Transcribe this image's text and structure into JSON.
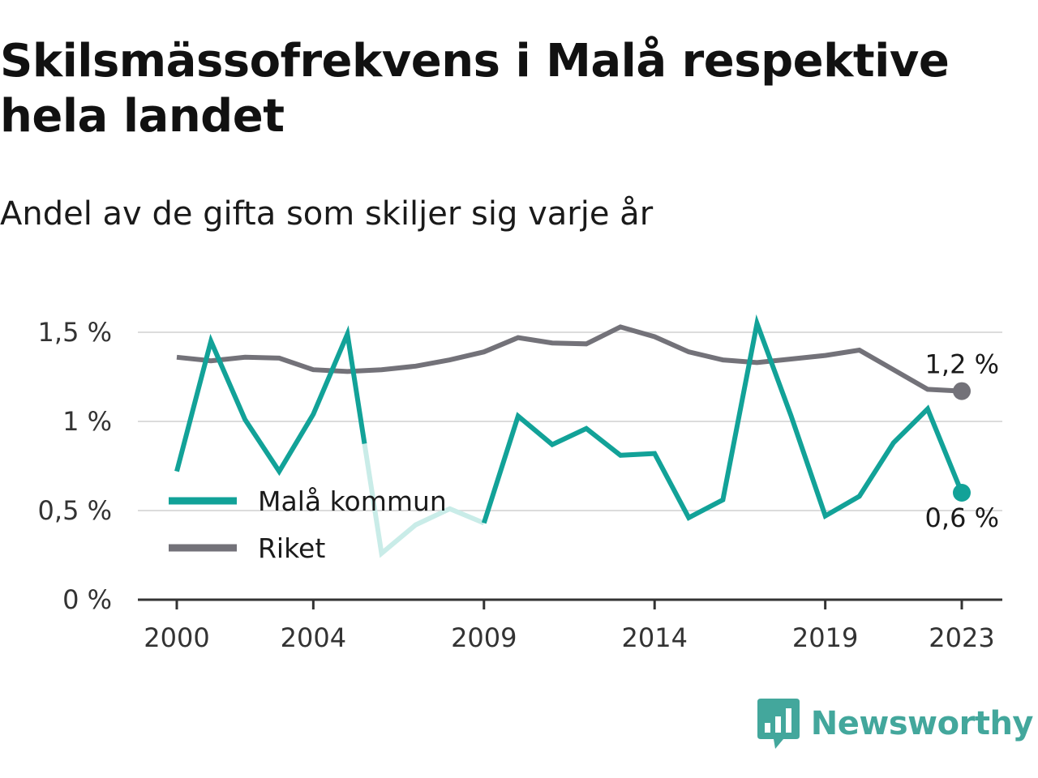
{
  "title": "Skilsmässofrekvens i Malå respektive hela landet",
  "subtitle": "Andel av de gifta som skiljer sig varje år",
  "brand": {
    "name": "Newsworthy",
    "logo_icon": "bar-chart-speech-bubble-icon",
    "color": "#43a79c"
  },
  "chart_data": {
    "type": "line",
    "title": "Skilsmässofrekvens i Malå respektive hela landet",
    "subtitle": "Andel av de gifta som skiljer sig varje år",
    "xlabel": "",
    "ylabel": "",
    "x": [
      2000,
      2001,
      2002,
      2003,
      2004,
      2005,
      2006,
      2007,
      2008,
      2009,
      2010,
      2011,
      2012,
      2013,
      2014,
      2015,
      2016,
      2017,
      2018,
      2019,
      2020,
      2021,
      2022,
      2023
    ],
    "x_ticks": [
      2000,
      2004,
      2009,
      2014,
      2019,
      2023
    ],
    "x_tick_labels": [
      "2000",
      "2004",
      "2009",
      "2014",
      "2019",
      "2023"
    ],
    "ylim": [
      0,
      1.6
    ],
    "y_ticks": [
      0,
      0.5,
      1,
      1.5
    ],
    "y_tick_labels": [
      "0 %",
      "0,5 %",
      "1 %",
      "1,5 %"
    ],
    "grid": true,
    "legend_position": "bottom-left",
    "series": [
      {
        "name": "Malå kommun",
        "color": "#12a298",
        "faded_color": "#c9ece8",
        "faded_range": [
          2005.5,
          2009
        ],
        "values": [
          0.72,
          1.45,
          1.01,
          0.72,
          1.04,
          1.49,
          0.26,
          0.42,
          0.51,
          0.43,
          1.03,
          0.87,
          0.96,
          0.81,
          0.82,
          0.46,
          0.56,
          1.55,
          1.03,
          0.47,
          0.58,
          0.88,
          1.07,
          0.6
        ],
        "end_label": "0,6 %"
      },
      {
        "name": "Riket",
        "color": "#737279",
        "values": [
          1.36,
          1.34,
          1.36,
          1.355,
          1.29,
          1.28,
          1.29,
          1.31,
          1.345,
          1.39,
          1.47,
          1.44,
          1.435,
          1.53,
          1.475,
          1.39,
          1.345,
          1.33,
          1.35,
          1.37,
          1.4,
          1.29,
          1.18,
          1.17
        ],
        "end_label": "1,2 %"
      }
    ]
  }
}
